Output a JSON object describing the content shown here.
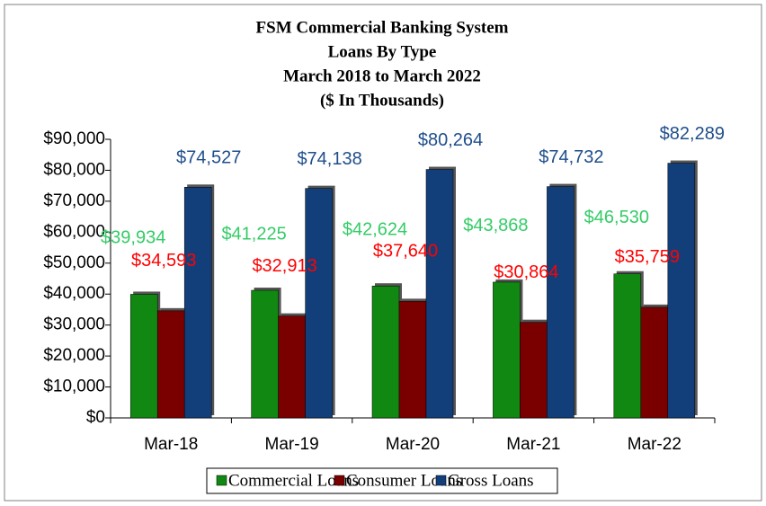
{
  "chart_data": {
    "type": "bar",
    "title": [
      "FSM Commercial Banking System",
      "Loans By Type",
      "March 2018 to March 2022",
      "($ In Thousands)"
    ],
    "categories": [
      "Mar-18",
      "Mar-19",
      "Mar-20",
      "Mar-21",
      "Mar-22"
    ],
    "series": [
      {
        "name": "Commercial Loans",
        "color": "#118811",
        "label_color": "#33cc66",
        "values": [
          39934,
          41225,
          42624,
          43868,
          46530
        ],
        "value_labels": [
          "$39,934",
          "$41,225",
          "$42,624",
          "$43,868",
          "$46,530"
        ]
      },
      {
        "name": "Consumer Loans",
        "color": "#7a0000",
        "label_color": "#ff0000",
        "values": [
          34593,
          32913,
          37640,
          30864,
          35759
        ],
        "value_labels": [
          "$34,593",
          "$32,913",
          "$37,640",
          "$30,864",
          "$35,759"
        ]
      },
      {
        "name": "Gross Loans",
        "color": "#123f7a",
        "label_color": "#1f4e8c",
        "values": [
          74527,
          74138,
          80264,
          74732,
          82289
        ],
        "value_labels": [
          "$74,527",
          "$74,138",
          "$80,264",
          "$74,732",
          "$82,289"
        ]
      }
    ],
    "ylim": [
      0,
      90000
    ],
    "yticks": [
      {
        "value": 0,
        "label": "$0"
      },
      {
        "value": 10000,
        "label": "$10,000"
      },
      {
        "value": 20000,
        "label": "$20,000"
      },
      {
        "value": 30000,
        "label": "$30,000"
      },
      {
        "value": 40000,
        "label": "$40,000"
      },
      {
        "value": 50000,
        "label": "$50,000"
      },
      {
        "value": 60000,
        "label": "$60,000"
      },
      {
        "value": 70000,
        "label": "$70,000"
      },
      {
        "value": 80000,
        "label": "$80,000"
      },
      {
        "value": 90000,
        "label": "$90,000"
      }
    ],
    "legend": "bottom"
  }
}
